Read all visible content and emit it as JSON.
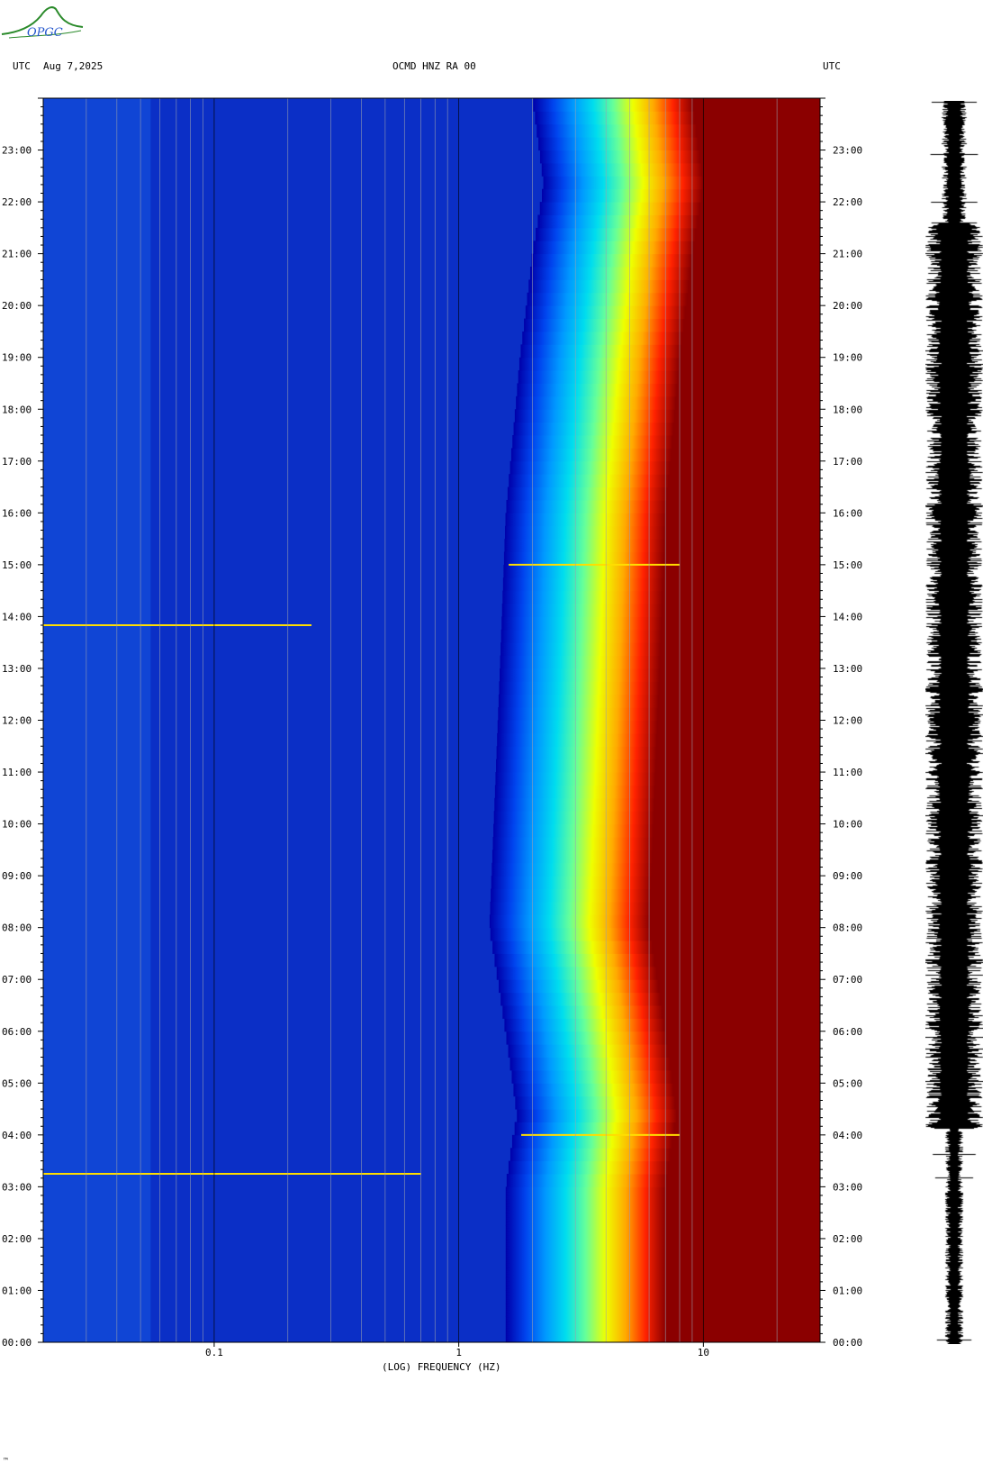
{
  "header": {
    "left_tz": "UTC",
    "date": "Aug 7,2025",
    "station": "OCMD HNZ RA 00",
    "right_tz": "UTC"
  },
  "logo": {
    "text": "OPGC",
    "color": "#2a8a2a",
    "text_color": "#2255cc"
  },
  "footer_mark": "™",
  "chart_data": {
    "type": "heatmap",
    "title": "OCMD HNZ RA 00",
    "xlabel": "(LOG) FREQUENCY (HZ)",
    "ylabel": "",
    "x_scale": "log",
    "xlim": [
      0.02,
      30
    ],
    "x_ticks": [
      {
        "value": 0.1,
        "label": "0.1"
      },
      {
        "value": 1,
        "label": "1"
      },
      {
        "value": 10,
        "label": "10"
      }
    ],
    "ylim": [
      "00:00",
      "24:00"
    ],
    "y_ticks": [
      "00:00",
      "01:00",
      "02:00",
      "03:00",
      "04:00",
      "05:00",
      "06:00",
      "07:00",
      "08:00",
      "09:00",
      "10:00",
      "11:00",
      "12:00",
      "13:00",
      "14:00",
      "15:00",
      "16:00",
      "17:00",
      "18:00",
      "19:00",
      "20:00",
      "21:00",
      "22:00",
      "23:00"
    ],
    "colormap": [
      "#0000aa",
      "#0044ee",
      "#0099ff",
      "#00ddee",
      "#66ff99",
      "#eeff00",
      "#ffaa00",
      "#ff2200",
      "#8b0000"
    ],
    "background_color": "#0b2fc6",
    "saturation_color": "#8b0000",
    "energy_edge_hz": [
      {
        "time": "00:00",
        "hz": 7.0
      },
      {
        "time": "03:00",
        "hz": 7.0
      },
      {
        "time": "04:00",
        "hz": 7.5
      },
      {
        "time": "04:20",
        "hz": 7.8
      },
      {
        "time": "08:00",
        "hz": 6.0
      },
      {
        "time": "12:00",
        "hz": 6.5
      },
      {
        "time": "16:00",
        "hz": 7.0
      },
      {
        "time": "19:00",
        "hz": 8.0
      },
      {
        "time": "21:00",
        "hz": 9.0
      },
      {
        "time": "22:20",
        "hz": 10.0
      },
      {
        "time": "24:00",
        "hz": 9.0
      }
    ],
    "notable_lines": [
      {
        "time": "04:00",
        "from_hz": 1.8,
        "to_hz": 8.0
      },
      {
        "time": "03:15",
        "from_hz": 0.02,
        "to_hz": 0.7
      },
      {
        "time": "13:50",
        "from_hz": 0.02,
        "to_hz": 0.25
      },
      {
        "time": "15:00",
        "from_hz": 1.6,
        "to_hz": 8.0
      }
    ],
    "seismogram": {
      "color": "#000000"
    }
  }
}
